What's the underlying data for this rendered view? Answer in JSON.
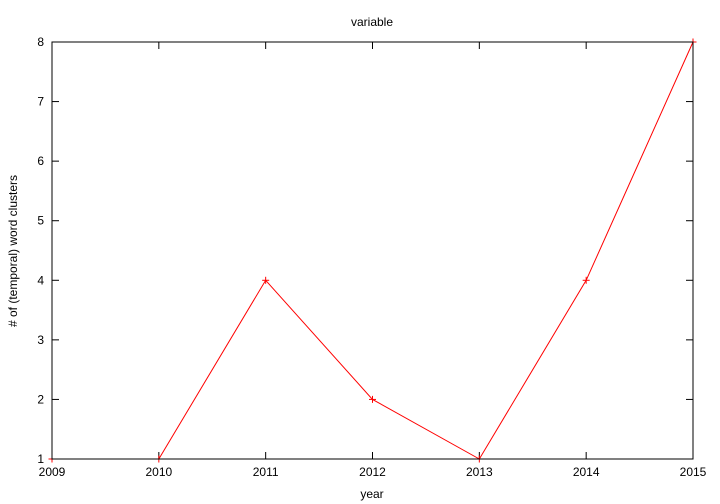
{
  "chart_data": {
    "type": "line",
    "title": "variable",
    "xlabel": "year",
    "ylabel": "# of (temporal) word clusters",
    "xlim": [
      2009,
      2015
    ],
    "ylim": [
      1,
      8
    ],
    "x_ticks": [
      "2009",
      "2010",
      "2011",
      "2012",
      "2013",
      "2014",
      "2015"
    ],
    "y_ticks": [
      "1",
      "2",
      "3",
      "4",
      "5",
      "6",
      "7",
      "8"
    ],
    "grid": false,
    "series": [
      {
        "x": [
          2009,
          2010,
          2011,
          2012,
          2013,
          2014,
          2015
        ],
        "values": [
          1,
          1,
          4,
          2,
          1,
          4,
          8
        ],
        "color": "#ff0000",
        "marker": "plus"
      }
    ]
  }
}
